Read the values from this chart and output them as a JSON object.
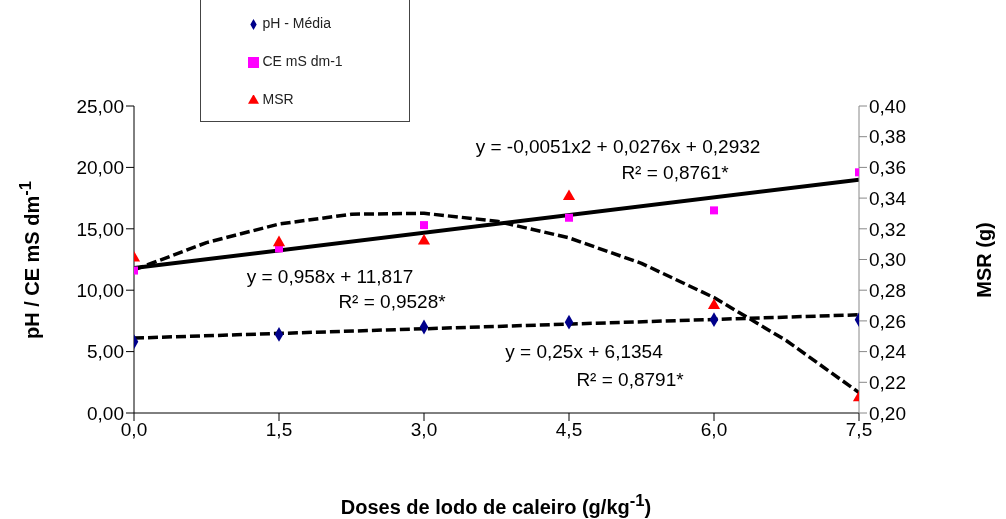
{
  "chart_data": {
    "type": "scatter",
    "xlabel": "Doses de lodo de caleiro (g/kg$^{-1}$)",
    "ylabel": "pH / CE mS dm$^{-1}$",
    "y2label": "MSR (g)",
    "xlim": [
      0,
      7.5
    ],
    "xticks": [
      {
        "value": 0,
        "label": "0,0"
      },
      {
        "value": 1.5,
        "label": "1,5"
      },
      {
        "value": 3,
        "label": "3,0"
      },
      {
        "value": 4.5,
        "label": "4,5"
      },
      {
        "value": 6,
        "label": "6,0"
      },
      {
        "value": 7.5,
        "label": "7,5"
      }
    ],
    "ylim": [
      0,
      25
    ],
    "yticks": [
      {
        "value": 0,
        "label": "0,00"
      },
      {
        "value": 5,
        "label": "5,00"
      },
      {
        "value": 10,
        "label": "10,00"
      },
      {
        "value": 15,
        "label": "15,00"
      },
      {
        "value": 20,
        "label": "20,00"
      },
      {
        "value": 25,
        "label": "25,00"
      }
    ],
    "y2lim": [
      0.2,
      0.4
    ],
    "y2ticks": [
      {
        "value": 0.2,
        "label": "0,20"
      },
      {
        "value": 0.22,
        "label": "0,22"
      },
      {
        "value": 0.24,
        "label": "0,24"
      },
      {
        "value": 0.26,
        "label": "0,26"
      },
      {
        "value": 0.28,
        "label": "0,28"
      },
      {
        "value": 0.3,
        "label": "0,30"
      },
      {
        "value": 0.32,
        "label": "0,32"
      },
      {
        "value": 0.34,
        "label": "0,34"
      },
      {
        "value": 0.36,
        "label": "0,36"
      },
      {
        "value": 0.38,
        "label": "0,38"
      },
      {
        "value": 0.4,
        "label": "0,40"
      }
    ],
    "x": [
      0,
      1.5,
      3,
      4.5,
      6,
      7.5
    ],
    "series": [
      {
        "name": "pH - Média",
        "color": "#00008b",
        "marker": "diamond",
        "values": [
          5.8,
          6.4,
          7.0,
          7.4,
          7.6,
          7.6
        ]
      },
      {
        "name": "CE mS dm-1",
        "color": "#ff00ff",
        "marker": "square",
        "values": [
          11.6,
          13.4,
          15.3,
          15.9,
          16.5,
          19.6
        ]
      },
      {
        "name": "MSR",
        "color": "#ff0000",
        "marker": "triangle",
        "axis": "y2",
        "values": [
          0.301,
          0.311,
          0.312,
          0.341,
          0.27,
          0.21
        ]
      },
      {
        "type": "line",
        "color": "#000000",
        "line_style": "dashed",
        "x": [
          0,
          7.5
        ],
        "values": [
          6.1,
          8.0
        ]
      },
      {
        "type": "line",
        "color": "#000000",
        "line_style": "solid",
        "x": [
          0,
          7.5
        ],
        "values": [
          11.8,
          19.0
        ]
      },
      {
        "type": "line",
        "color": "#000000",
        "line_style": "dashed",
        "axis": "y2",
        "x": [
          0,
          0.75,
          1.5,
          2.25,
          3,
          3.75,
          4.5,
          5.25,
          6,
          6.75,
          7.5
        ],
        "values": [
          0.2932,
          0.311,
          0.3231,
          0.3295,
          0.3301,
          0.325,
          0.3141,
          0.2975,
          0.2752,
          0.2471,
          0.2133
        ]
      }
    ],
    "annotations": [
      "y = -0,0051x2 + 0,0276x + 0,2932",
      "R² = 0,8761*",
      "y = 0,958x + 11,817",
      "R² = 0,9528*",
      "y = 0,25x + 6,1354",
      "R² = 0,8791*"
    ],
    "legend": "top left",
    "grid": false
  }
}
